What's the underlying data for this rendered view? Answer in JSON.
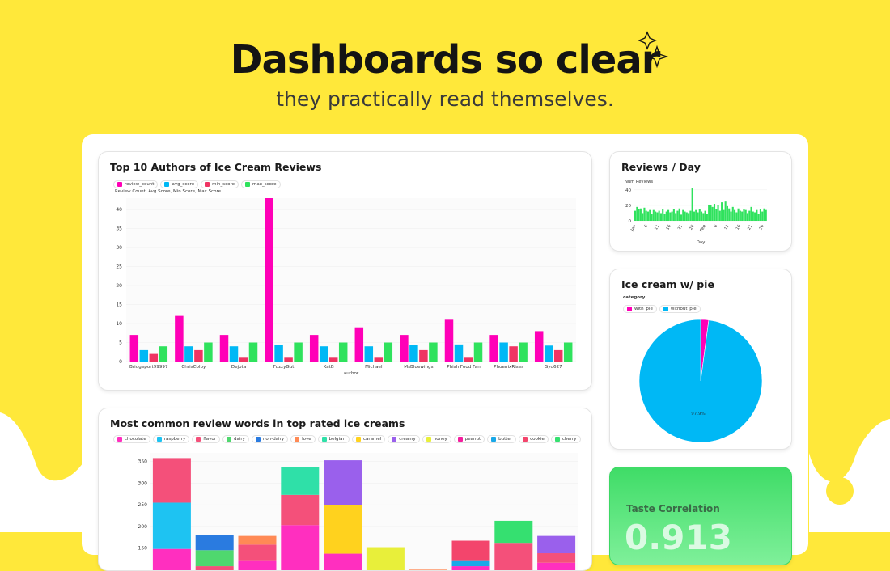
{
  "hero": {
    "title": "Dashboards so clear",
    "subtitle": "they practically read themselves."
  },
  "colors": {
    "background": "#ffe83a",
    "pink": "#ff00b7",
    "blue": "#00b8f5",
    "red": "#ef3463",
    "green": "#2fe25d"
  },
  "cards": {
    "authors": {
      "title": "Top 10 Authors of Ice Cream Reviews",
      "legend": [
        {
          "label": "review_count",
          "color": "#ff00b7"
        },
        {
          "label": "avg_score",
          "color": "#00b8f5"
        },
        {
          "label": "min_score",
          "color": "#ef3463"
        },
        {
          "label": "max_score",
          "color": "#2fe25d"
        }
      ],
      "axis_caption": "Review Count, Avg Score, Min Score, Max Score",
      "xlabel": "author"
    },
    "reviews_day": {
      "title": "Reviews / Day",
      "ylabel": "Num Reviews",
      "xlabel": "Day"
    },
    "pie": {
      "title": "Ice cream w/ pie",
      "legend_title": "category",
      "legend": [
        {
          "label": "with_pie",
          "color": "#ff00b7"
        },
        {
          "label": "without_pie",
          "color": "#00b8f5"
        }
      ],
      "slice_label": "97.9%"
    },
    "words": {
      "title": "Most common review words in top rated ice creams",
      "legend": [
        {
          "label": "chocolate",
          "color": "#ff2fbf"
        },
        {
          "label": "raspberry",
          "color": "#1ec3f2"
        },
        {
          "label": "flavor",
          "color": "#f4507a"
        },
        {
          "label": "dairy",
          "color": "#4fd86e"
        },
        {
          "label": "non-dairy",
          "color": "#2a7be0"
        },
        {
          "label": "love",
          "color": "#ff8a55"
        },
        {
          "label": "belgian",
          "color": "#2fe0a8"
        },
        {
          "label": "caramel",
          "color": "#ffd21e"
        },
        {
          "label": "creamy",
          "color": "#9a60ec"
        },
        {
          "label": "honey",
          "color": "#e8ef3a"
        },
        {
          "label": "peanut",
          "color": "#f41d9e"
        },
        {
          "label": "butter",
          "color": "#19a8e8"
        },
        {
          "label": "cookie",
          "color": "#f3456c"
        },
        {
          "label": "cherry",
          "color": "#35e070"
        }
      ]
    },
    "kpi": {
      "label": "Taste Correlation",
      "value": "0.913"
    }
  },
  "chart_data": [
    {
      "type": "bar",
      "title": "Top 10 Authors of Ice Cream Reviews",
      "xlabel": "author",
      "ylabel": "Review Count, Avg Score, Min Score, Max Score",
      "ylim": [
        0,
        43
      ],
      "yticks": [
        0,
        5,
        10,
        15,
        20,
        25,
        30,
        35,
        40
      ],
      "categories": [
        "Bridgeport99997",
        "ChrisColby",
        "Dejota",
        "FuzzyGut",
        "KatB",
        "Michael",
        "MsBluewings",
        "Phish Food Fan",
        "PhoenixRises",
        "Syd627"
      ],
      "series": [
        {
          "name": "review_count",
          "values": [
            7,
            12,
            7,
            43,
            7,
            9,
            7,
            11,
            7,
            8
          ]
        },
        {
          "name": "avg_score",
          "values": [
            3,
            4,
            4,
            4.3,
            4,
            4,
            4.4,
            4.5,
            5,
            4.2
          ]
        },
        {
          "name": "min_score",
          "values": [
            2,
            3,
            1,
            1,
            1,
            1,
            3,
            1,
            4,
            3
          ]
        },
        {
          "name": "max_score",
          "values": [
            4,
            5,
            5,
            5,
            5,
            5,
            5,
            5,
            5,
            5
          ]
        }
      ]
    },
    {
      "type": "bar",
      "title": "Reviews / Day",
      "xlabel": "Day",
      "ylabel": "Num Reviews",
      "ylim": [
        0,
        43
      ],
      "yticks": [
        0,
        20,
        40
      ],
      "xticklabels": [
        "Jan",
        "6",
        "11",
        "16",
        "21",
        "26",
        "Feb",
        "6",
        "11",
        "16",
        "21",
        "26"
      ],
      "values": [
        13,
        18,
        15,
        16,
        10,
        17,
        13,
        12,
        14,
        9,
        14,
        12,
        11,
        13,
        10,
        15,
        9,
        12,
        14,
        11,
        12,
        15,
        10,
        13,
        16,
        8,
        14,
        12,
        11,
        10,
        13,
        43,
        12,
        14,
        11,
        15,
        12,
        10,
        13,
        9,
        21,
        20,
        18,
        22,
        15,
        20,
        13,
        24,
        14,
        25,
        19,
        16,
        12,
        18,
        14,
        11,
        16,
        13,
        12,
        15,
        14,
        10,
        13,
        18,
        12,
        11,
        14,
        9,
        15,
        12,
        16,
        14
      ]
    },
    {
      "type": "pie",
      "title": "Ice cream w/ pie",
      "categories": [
        "with_pie",
        "without_pie"
      ],
      "values": [
        2.1,
        97.9
      ]
    },
    {
      "type": "bar",
      "title": "Most common review words in top rated ice creams",
      "yticks": [
        150,
        200,
        250,
        300,
        350
      ],
      "ylim": [
        95,
        370
      ],
      "series": [
        "chocolate",
        "raspberry",
        "flavor",
        "dairy",
        "non-dairy",
        "love",
        "belgian",
        "caramel",
        "creamy",
        "honey",
        "peanut",
        "butter",
        "cookie",
        "cherry"
      ],
      "stacks": [
        [
          {
            "s": "chocolate",
            "v": 148
          },
          {
            "s": "raspberry",
            "v": 255
          },
          {
            "s": "flavor",
            "v": 358
          }
        ],
        [
          {
            "s": "flavor",
            "v": 108
          },
          {
            "s": "dairy",
            "v": 145
          },
          {
            "s": "non-dairy",
            "v": 180
          }
        ],
        [
          {
            "s": "chocolate",
            "v": 120
          },
          {
            "s": "flavor",
            "v": 158
          },
          {
            "s": "love",
            "v": 178
          }
        ],
        [
          {
            "s": "chocolate",
            "v": 203
          },
          {
            "s": "flavor",
            "v": 273
          },
          {
            "s": "belgian",
            "v": 338
          }
        ],
        [
          {
            "s": "chocolate",
            "v": 137
          },
          {
            "s": "caramel",
            "v": 250
          },
          {
            "s": "creamy",
            "v": 353
          }
        ],
        [
          {
            "s": "peanut",
            "v": 98
          },
          {
            "s": "honey",
            "v": 152
          }
        ],
        [
          {
            "s": "love",
            "v": 100
          }
        ],
        [
          {
            "s": "chocolate",
            "v": 108
          },
          {
            "s": "butter",
            "v": 120
          },
          {
            "s": "cookie",
            "v": 167
          }
        ],
        [
          {
            "s": "flavor",
            "v": 162
          },
          {
            "s": "cherry",
            "v": 213
          }
        ],
        [
          {
            "s": "chocolate",
            "v": 116
          },
          {
            "s": "flavor",
            "v": 138
          },
          {
            "s": "creamy",
            "v": 178
          }
        ]
      ]
    }
  ]
}
